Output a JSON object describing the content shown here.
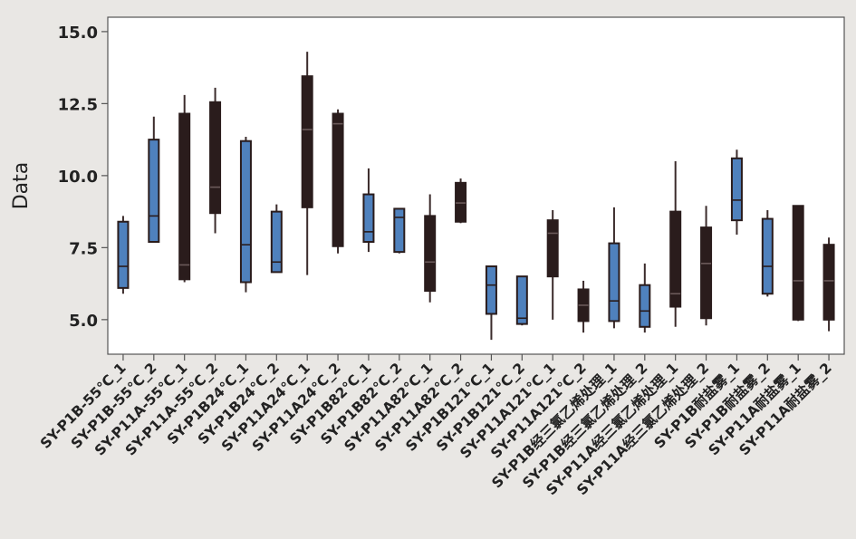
{
  "chart_data": {
    "type": "box",
    "title": "",
    "xlabel": "",
    "ylabel": "Data",
    "ylim": [
      3.8,
      15.5
    ],
    "yticks": [
      "5.0",
      "7.5",
      "10.0",
      "12.5",
      "15.0"
    ],
    "ytick_values": [
      5.0,
      7.5,
      10.0,
      12.5,
      15.0
    ],
    "grid": false,
    "colors": {
      "blue": "#4f81bd",
      "dark": "#2a1c1c",
      "whisker": "#3b2b2b",
      "border": "#555555",
      "background": "#e9e7e4"
    },
    "categories": [
      "SY-P1B-55℃_1",
      "SY-P1B-55℃_2",
      "SY-P11A-55℃_1",
      "SY-P11A-55℃_2",
      "SY-P1B24℃_1",
      "SY-P1B24℃_2",
      "SY-P11A24℃_1",
      "SY-P11A24℃_2",
      "SY-P1B82℃_1",
      "SY-P1B82℃_2",
      "SY-P11A82℃_1",
      "SY-P11A82℃_2",
      "SY-P1B121℃_1",
      "SY-P1B121℃_2",
      "SY-P11A121℃_1",
      "SY-P11A121℃_2",
      "SY-P1B经三氯乙烯处理_1",
      "SY-P1B经三氯乙烯处理_2",
      "SY-P11A经三氯乙烯处理_1",
      "SY-P11A经三氯乙烯处理_2",
      "SY-P1B耐盐雾_1",
      "SY-P1B耐盐雾_2",
      "SY-P11A耐盐雾_1",
      "SY-P11A耐盐雾_2"
    ],
    "boxes": [
      {
        "min": 5.9,
        "q1": 6.1,
        "median": 6.85,
        "q3": 8.4,
        "max": 8.6,
        "color": "blue"
      },
      {
        "min": 7.7,
        "q1": 7.7,
        "median": 8.6,
        "q3": 11.25,
        "max": 12.05,
        "color": "blue"
      },
      {
        "min": 6.3,
        "q1": 6.4,
        "median": 6.9,
        "q3": 12.15,
        "max": 12.8,
        "color": "dark"
      },
      {
        "min": 8.0,
        "q1": 8.7,
        "median": 9.6,
        "q3": 12.55,
        "max": 13.05,
        "color": "dark"
      },
      {
        "min": 5.95,
        "q1": 6.3,
        "median": 7.6,
        "q3": 11.2,
        "max": 11.35,
        "color": "blue"
      },
      {
        "min": 6.65,
        "q1": 6.65,
        "median": 7.0,
        "q3": 8.75,
        "max": 9.0,
        "color": "blue"
      },
      {
        "min": 6.55,
        "q1": 8.9,
        "median": 11.6,
        "q3": 13.45,
        "max": 14.3,
        "color": "dark"
      },
      {
        "min": 7.3,
        "q1": 7.55,
        "median": 11.8,
        "q3": 12.15,
        "max": 12.3,
        "color": "dark"
      },
      {
        "min": 7.35,
        "q1": 7.7,
        "median": 8.05,
        "q3": 9.35,
        "max": 10.25,
        "color": "blue"
      },
      {
        "min": 7.3,
        "q1": 7.35,
        "median": 8.55,
        "q3": 8.85,
        "max": 8.85,
        "color": "blue"
      },
      {
        "min": 5.6,
        "q1": 6.0,
        "median": 7.0,
        "q3": 8.6,
        "max": 9.35,
        "color": "dark"
      },
      {
        "min": 8.35,
        "q1": 8.4,
        "median": 9.05,
        "q3": 9.75,
        "max": 9.9,
        "color": "dark"
      },
      {
        "min": 4.3,
        "q1": 5.2,
        "median": 6.2,
        "q3": 6.85,
        "max": 6.85,
        "color": "blue"
      },
      {
        "min": 4.8,
        "q1": 4.85,
        "median": 5.05,
        "q3": 6.5,
        "max": 6.5,
        "color": "blue"
      },
      {
        "min": 5.0,
        "q1": 6.5,
        "median": 8.0,
        "q3": 8.45,
        "max": 8.8,
        "color": "dark"
      },
      {
        "min": 4.55,
        "q1": 4.95,
        "median": 5.5,
        "q3": 6.05,
        "max": 6.35,
        "color": "dark"
      },
      {
        "min": 4.7,
        "q1": 4.95,
        "median": 5.65,
        "q3": 7.65,
        "max": 8.9,
        "color": "blue"
      },
      {
        "min": 4.55,
        "q1": 4.75,
        "median": 5.3,
        "q3": 6.2,
        "max": 6.95,
        "color": "blue"
      },
      {
        "min": 4.75,
        "q1": 5.45,
        "median": 5.9,
        "q3": 8.75,
        "max": 10.5,
        "color": "dark"
      },
      {
        "min": 4.8,
        "q1": 5.05,
        "median": 6.95,
        "q3": 8.2,
        "max": 8.95,
        "color": "dark"
      },
      {
        "min": 7.95,
        "q1": 8.45,
        "median": 9.15,
        "q3": 10.6,
        "max": 10.9,
        "color": "blue"
      },
      {
        "min": 5.8,
        "q1": 5.9,
        "median": 6.85,
        "q3": 8.5,
        "max": 8.8,
        "color": "blue"
      },
      {
        "min": 4.95,
        "q1": 5.0,
        "median": 6.35,
        "q3": 8.95,
        "max": 8.95,
        "color": "dark"
      },
      {
        "min": 4.6,
        "q1": 5.0,
        "median": 6.35,
        "q3": 7.6,
        "max": 7.85,
        "color": "dark"
      }
    ]
  }
}
